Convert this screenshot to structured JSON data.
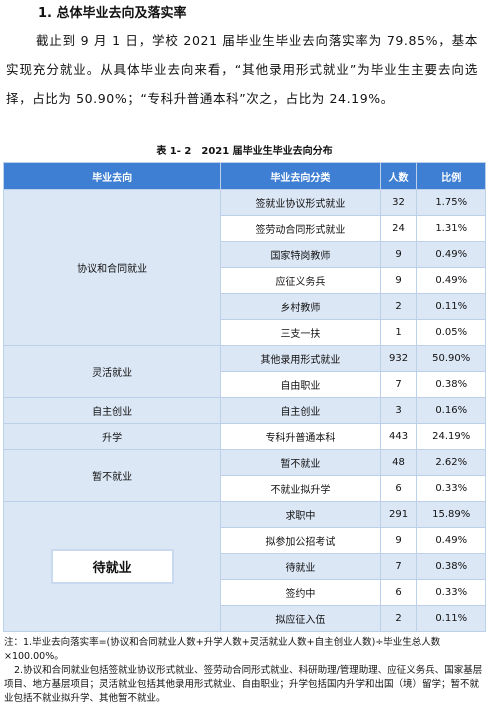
{
  "heading": "1. 总体毕业去向及落实率",
  "paragraph": "截止到 9 月 1 日，学校 2021 届毕业生毕业去向落实率为 79.85%，基本实现充分就业。从具体毕业去向来看，“其他录用形式就业”为毕业生主要去向选择，占比为 50.90%；“专科升普通本科”次之，占比为 24.19%。",
  "table": {
    "caption": "表 1- 2　2021 届毕业生毕业去向分布",
    "header": [
      "毕业去向",
      "毕业去向分类",
      "人数",
      "比例"
    ],
    "groups": [
      {
        "label": "协议和合同就业",
        "rows": [
          [
            "签就业协议形式就业",
            32,
            "1.75%"
          ],
          [
            "签劳动合同形式就业",
            24,
            "1.31%"
          ],
          [
            "国家特岗教师",
            9,
            "0.49%"
          ],
          [
            "应征义务兵",
            9,
            "0.49%"
          ],
          [
            "乡村教师",
            2,
            "0.11%"
          ],
          [
            "三支一扶",
            1,
            "0.05%"
          ]
        ]
      },
      {
        "label": "灵活就业",
        "rows": [
          [
            "其他录用形式就业",
            932,
            "50.90%"
          ],
          [
            "自由职业",
            7,
            "0.38%"
          ]
        ]
      },
      {
        "label": "自主创业",
        "rows": [
          [
            "自主创业",
            3,
            "0.16%"
          ]
        ]
      },
      {
        "label": "升学",
        "rows": [
          [
            "专科升普通本科",
            443,
            "24.19%"
          ]
        ]
      },
      {
        "label": "暂不就业",
        "rows": [
          [
            "暂不就业",
            48,
            "2.62%"
          ],
          [
            "不就业拟升学",
            6,
            "0.33%"
          ]
        ]
      },
      {
        "label": "待就业",
        "rows": [
          [
            "求职中",
            291,
            "15.89%"
          ],
          [
            "拟参加公招考试",
            9,
            "0.49%"
          ],
          [
            "待就业",
            7,
            "0.38%"
          ],
          [
            "签约中",
            6,
            "0.33%"
          ],
          [
            "拟应征入伍",
            2,
            "0.11%"
          ]
        ]
      }
    ]
  },
  "notes": [
    "注：1.毕业去向落实率=(协议和合同就业人数+升学人数+灵活就业人数+自主创业人数)÷毕业生总人数×100.00%。",
    "2.协议和合同就业包括签就业协议形式就业、签劳动合同形式就业、科研助理/管理助理、应征义务兵、国家基层项目、地方基层项目；灵活就业包括其他录用形式就业、自由职业；升学包括国内升学和出国（境）留学；暂不就业包括不就业拟升学、其他暂不就业。"
  ]
}
